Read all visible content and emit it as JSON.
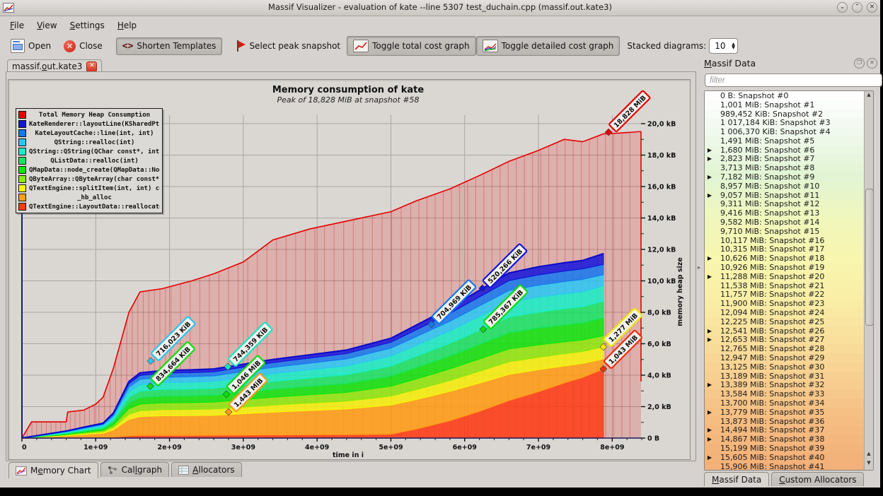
{
  "window": {
    "title": "Massif Visualizer - evaluation of kate --line 5307 test_duchain.cpp (massif.out.kate3)",
    "controls": [
      "⌄",
      "⌃",
      "✕"
    ]
  },
  "menu": [
    {
      "label": "File",
      "accel": 0
    },
    {
      "label": "View",
      "accel": 0
    },
    {
      "label": "Settings",
      "accel": 0
    },
    {
      "label": "Help",
      "accel": 0
    }
  ],
  "toolbar": {
    "open": "Open",
    "close": "Close",
    "shorten_templates": "Shorten Templates",
    "shorten_glyph": "<>",
    "select_peak": "Select peak snapshot",
    "toggle_total": "Toggle total cost graph",
    "toggle_detailed": "Toggle detailed cost graph",
    "stacked_label": "Stacked diagrams:",
    "stacked_value": "10"
  },
  "document_tab": {
    "label": "massif.out.kate3",
    "accel": 7,
    "close_glyph": "✕"
  },
  "bottom_tabs": [
    {
      "label": "Memory Chart",
      "accel": 1
    },
    {
      "label": "Callgraph",
      "accel": 3
    },
    {
      "label": "Allocators",
      "accel": 0
    }
  ],
  "dock": {
    "title": {
      "label": "Massif Data",
      "accel": 0
    },
    "filter_placeholder": "filter",
    "tabs": [
      {
        "label": "Massif Data",
        "accel": 0
      },
      {
        "label": "Custom Allocators",
        "accel": 0
      }
    ],
    "heat_ramp": [
      "#ffffff",
      "#eef8ea",
      "#e2f4d2",
      "#f0f7bc",
      "#f8f6ae",
      "#f9eda6",
      "#f9dd9b",
      "#f7cc8e",
      "#f5bb81",
      "#f3b078"
    ],
    "snapshots": [
      {
        "text": "0 B: Snapshot #0",
        "expandable": false
      },
      {
        "text": "1,001 MiB: Snapshot #1",
        "expandable": false
      },
      {
        "text": "989,452 KiB: Snapshot #2",
        "expandable": false
      },
      {
        "text": "1 017,184 KiB: Snapshot #3",
        "expandable": false
      },
      {
        "text": "1 006,370 KiB: Snapshot #4",
        "expandable": false
      },
      {
        "text": "1,491 MiB: Snapshot #5",
        "expandable": false
      },
      {
        "text": "1,680 MiB: Snapshot #6",
        "expandable": true
      },
      {
        "text": "2,823 MiB: Snapshot #7",
        "expandable": true
      },
      {
        "text": "3,713 MiB: Snapshot #8",
        "expandable": false
      },
      {
        "text": "7,182 MiB: Snapshot #9",
        "expandable": true
      },
      {
        "text": "8,957 MiB: Snapshot #10",
        "expandable": false
      },
      {
        "text": "9,057 MiB: Snapshot #11",
        "expandable": true
      },
      {
        "text": "9,311 MiB: Snapshot #12",
        "expandable": false
      },
      {
        "text": "9,416 MiB: Snapshot #13",
        "expandable": false
      },
      {
        "text": "9,582 MiB: Snapshot #14",
        "expandable": false
      },
      {
        "text": "9,710 MiB: Snapshot #15",
        "expandable": false
      },
      {
        "text": "10,117 MiB: Snapshot #16",
        "expandable": false
      },
      {
        "text": "10,315 MiB: Snapshot #17",
        "expandable": false
      },
      {
        "text": "10,626 MiB: Snapshot #18",
        "expandable": true
      },
      {
        "text": "10,926 MiB: Snapshot #19",
        "expandable": false
      },
      {
        "text": "11,288 MiB: Snapshot #20",
        "expandable": true
      },
      {
        "text": "11,538 MiB: Snapshot #21",
        "expandable": false
      },
      {
        "text": "11,757 MiB: Snapshot #22",
        "expandable": false
      },
      {
        "text": "11,900 MiB: Snapshot #23",
        "expandable": false
      },
      {
        "text": "12,094 MiB: Snapshot #24",
        "expandable": false
      },
      {
        "text": "12,225 MiB: Snapshot #25",
        "expandable": false
      },
      {
        "text": "12,541 MiB: Snapshot #26",
        "expandable": true
      },
      {
        "text": "12,653 MiB: Snapshot #27",
        "expandable": true
      },
      {
        "text": "12,765 MiB: Snapshot #28",
        "expandable": false
      },
      {
        "text": "12,947 MiB: Snapshot #29",
        "expandable": false
      },
      {
        "text": "13,125 MiB: Snapshot #30",
        "expandable": false
      },
      {
        "text": "13,189 MiB: Snapshot #31",
        "expandable": false
      },
      {
        "text": "13,389 MiB: Snapshot #32",
        "expandable": true
      },
      {
        "text": "13,584 MiB: Snapshot #33",
        "expandable": false
      },
      {
        "text": "13,700 MiB: Snapshot #34",
        "expandable": false
      },
      {
        "text": "13,779 MiB: Snapshot #35",
        "expandable": true
      },
      {
        "text": "13,873 MiB: Snapshot #36",
        "expandable": false
      },
      {
        "text": "14,494 MiB: Snapshot #37",
        "expandable": true
      },
      {
        "text": "14,867 MiB: Snapshot #38",
        "expandable": true
      },
      {
        "text": "15,199 MiB: Snapshot #39",
        "expandable": false
      },
      {
        "text": "15,605 MiB: Snapshot #40",
        "expandable": true
      },
      {
        "text": "15,906 MiB: Snapshot #41",
        "expandable": false
      }
    ]
  },
  "chart_data": {
    "type": "area",
    "title": "Memory consumption of kate",
    "subtitle": "Peak of 18,828 MiB at snapshot #58",
    "xlabel": "time in i",
    "ylabel": "memory heap size",
    "xlim": [
      0,
      8.39
    ],
    "ylim": [
      0,
      20
    ],
    "x_tick_values": [
      0,
      1,
      2,
      3,
      4,
      5,
      6,
      7,
      8
    ],
    "x_tick_labels": [
      "0",
      "1e+09",
      "2e+09",
      "3e+09",
      "4e+09",
      "5e+09",
      "6e+09",
      "7e+09",
      "8e+09"
    ],
    "y_tick_values": [
      0,
      2,
      4,
      6,
      8,
      10,
      12,
      14,
      16,
      18,
      20
    ],
    "y_tick_labels": [
      "0 B",
      "2,0 kB",
      "4,0 kB",
      "6,0 kB",
      "8,0 kB",
      "10,0 kB",
      "12,0 kB",
      "14,0 kB",
      "16,0 kB",
      "18,0 kB",
      "20,0 kB"
    ],
    "grid": true,
    "legend_position": "top-left",
    "legend": [
      {
        "label": "Total Memory Heap Consumption",
        "color": "#e60000"
      },
      {
        "label": "KateRenderer::layoutLine(KSharedPtr<>...",
        "color": "#1414dc"
      },
      {
        "label": "KateLayoutCache::line(int, int)",
        "color": "#1478f0"
      },
      {
        "label": "QString::realloc(int)",
        "color": "#28c8f5"
      },
      {
        "label": "QString::QString(QChar const*, int)",
        "color": "#14f0c8"
      },
      {
        "label": "QListData::realloc(int)",
        "color": "#14e664"
      },
      {
        "label": "QMapData::node_create(QMapData::Node*...",
        "color": "#0ce60c"
      },
      {
        "label": "QByteArray::QByteArray(char const*, int)",
        "color": "#8ceb0a"
      },
      {
        "label": "QTextEngine::splitItem(int, int) const",
        "color": "#f5f50a"
      },
      {
        "label": "_hb_alloc",
        "color": "#ffa014"
      },
      {
        "label": "QTextEngine::LayoutData::reallocate(int)",
        "color": "#ff3c14"
      }
    ],
    "x": [
      0,
      0.13,
      0.6,
      0.62,
      0.84,
      1.0,
      1.1,
      1.24,
      1.45,
      1.6,
      1.9,
      2.3,
      2.6,
      3.0,
      3.4,
      3.9,
      4.4,
      5.0,
      5.35,
      5.8,
      6.2,
      6.6,
      7.0,
      7.35,
      7.6,
      7.88
    ],
    "total": {
      "name": "Total Memory Heap Consumption",
      "color": "#e60000",
      "fill": "rgba(230,0,0,0.18)",
      "values": [
        0,
        1.03,
        1.03,
        1.66,
        1.78,
        2.16,
        2.6,
        4.45,
        8.0,
        9.3,
        9.5,
        10.0,
        10.45,
        11.2,
        12.6,
        13.3,
        13.8,
        14.4,
        15.1,
        15.85,
        16.7,
        17.6,
        18.3,
        19.0,
        18.85,
        19.35
      ],
      "ext": [
        [
          8.1,
          19.4
        ],
        [
          8.39,
          19.5
        ]
      ],
      "end_drop_to": 3.6
    },
    "series": [
      {
        "name": "QTextEngine::LayoutData::reallocate(int)",
        "color": "#ff3c14",
        "top": [
          0,
          0.0,
          0.02,
          0.02,
          0.03,
          0.03,
          0.04,
          0.06,
          0.14,
          0.17,
          0.17,
          0.17,
          0.18,
          0.19,
          0.2,
          0.21,
          0.22,
          0.25,
          0.58,
          1.11,
          1.7,
          2.39,
          2.95,
          3.51,
          3.86,
          4.4
        ]
      },
      {
        "name": "_hb_alloc",
        "color": "#ffa014",
        "top": [
          0,
          0.03,
          0.15,
          0.16,
          0.23,
          0.28,
          0.31,
          0.53,
          1.19,
          1.37,
          1.42,
          1.43,
          1.45,
          1.55,
          1.65,
          1.75,
          1.85,
          2.1,
          2.46,
          2.97,
          3.5,
          4.05,
          4.35,
          4.59,
          4.75,
          5.04
        ]
      },
      {
        "name": "QTextEngine::splitItem(int, int) const",
        "color": "#f5f50a",
        "top": [
          0,
          0.04,
          0.19,
          0.2,
          0.29,
          0.36,
          0.4,
          0.67,
          1.51,
          1.74,
          1.81,
          1.82,
          1.85,
          1.97,
          2.1,
          2.23,
          2.35,
          2.67,
          3.09,
          3.66,
          4.25,
          4.85,
          5.14,
          5.37,
          5.51,
          5.81
        ]
      },
      {
        "name": "QByteArray::QByteArray(char const*, int)",
        "color": "#8ceb0a",
        "top": [
          0,
          0.05,
          0.23,
          0.24,
          0.36,
          0.44,
          0.49,
          0.83,
          1.87,
          2.16,
          2.24,
          2.26,
          2.29,
          2.44,
          2.6,
          2.76,
          2.91,
          3.3,
          3.77,
          4.4,
          5.03,
          5.67,
          5.93,
          6.12,
          6.24,
          6.51
        ]
      },
      {
        "name": "QMapData::node_create(QMapData::Node*...",
        "color": "#0ce60c",
        "top": [
          0,
          0.06,
          0.28,
          0.29,
          0.43,
          0.53,
          0.59,
          0.99,
          2.23,
          2.57,
          2.67,
          2.69,
          2.73,
          2.91,
          3.1,
          3.29,
          3.47,
          3.94,
          4.49,
          5.22,
          5.95,
          6.7,
          7.0,
          7.2,
          7.33,
          7.65
        ]
      },
      {
        "name": "QListData::realloc(int)",
        "color": "#14e664",
        "top": [
          0,
          0.07,
          0.32,
          0.34,
          0.5,
          0.61,
          0.68,
          1.15,
          2.59,
          2.99,
          3.1,
          3.12,
          3.17,
          3.38,
          3.6,
          3.82,
          4.03,
          4.57,
          5.21,
          6.03,
          6.85,
          7.69,
          8.01,
          8.23,
          8.36,
          8.7
        ]
      },
      {
        "name": "QString::QString(QChar const*, int)",
        "color": "#14f0c8",
        "top": [
          0,
          0.08,
          0.37,
          0.39,
          0.57,
          0.7,
          0.78,
          1.31,
          2.95,
          3.4,
          3.53,
          3.56,
          3.61,
          3.85,
          4.1,
          4.35,
          4.59,
          5.21,
          5.91,
          6.82,
          7.73,
          8.64,
          8.97,
          9.18,
          9.31,
          9.7
        ]
      },
      {
        "name": "QString::realloc(int)",
        "color": "#28c8f5",
        "top": [
          0,
          0.09,
          0.41,
          0.42,
          0.63,
          0.77,
          0.86,
          1.44,
          3.24,
          3.74,
          3.87,
          3.91,
          3.96,
          4.23,
          4.5,
          4.77,
          5.04,
          5.72,
          6.47,
          7.44,
          8.41,
          9.39,
          9.73,
          9.96,
          10.1,
          10.4
        ]
      },
      {
        "name": "KateLayoutCache::line(int, int)",
        "color": "#1478f0",
        "top": [
          0,
          0.1,
          0.43,
          0.45,
          0.67,
          0.82,
          0.91,
          1.54,
          3.46,
          3.98,
          4.13,
          4.17,
          4.22,
          4.51,
          4.8,
          5.09,
          5.38,
          6.1,
          6.9,
          7.94,
          8.98,
          10.02,
          10.38,
          10.62,
          10.76,
          11.05
        ]
      },
      {
        "name": "KateRenderer::layoutLine(KSharedPtr<>...",
        "color": "#1414dc",
        "top": [
          0,
          0.1,
          0.45,
          0.47,
          0.7,
          0.85,
          0.95,
          1.6,
          3.6,
          4.15,
          4.3,
          4.34,
          4.4,
          4.7,
          5.0,
          5.3,
          5.6,
          6.35,
          7.2,
          8.3,
          9.4,
          10.5,
          10.9,
          11.15,
          11.3,
          11.73
        ]
      }
    ],
    "point_labels": [
      {
        "text": "716,023 KiB",
        "color": "#29c5f2",
        "x": 1.745,
        "y": 4.9
      },
      {
        "text": "834,664 KiB",
        "color": "#0ddd0d",
        "x": 1.74,
        "y": 3.3
      },
      {
        "text": "744,359 KiB",
        "color": "#12e8c4",
        "x": 2.79,
        "y": 4.54
      },
      {
        "text": "1,046 MiB",
        "color": "#0ddd0d",
        "x": 2.77,
        "y": 2.79
      },
      {
        "text": "1,443 MiB",
        "color": "#ff9a14",
        "x": 2.8,
        "y": 1.66
      },
      {
        "text": "704,969 KiB",
        "color": "#1478f0",
        "x": 5.55,
        "y": 7.24
      },
      {
        "text": "520,266 KiB",
        "color": "#1414dc",
        "x": 6.24,
        "y": 9.53
      },
      {
        "text": "785,367 KiB",
        "color": "#0ddd0d",
        "x": 6.25,
        "y": 6.92
      },
      {
        "text": "1,277 MiB",
        "color": "#f2e50a",
        "x": 7.88,
        "y": 5.8
      },
      {
        "text": "1,043 MiB",
        "color": "#f03010",
        "x": 7.88,
        "y": 4.4
      },
      {
        "text": "18,828 MiB",
        "color": "#e60000",
        "x": 7.95,
        "y": 19.46
      }
    ]
  }
}
